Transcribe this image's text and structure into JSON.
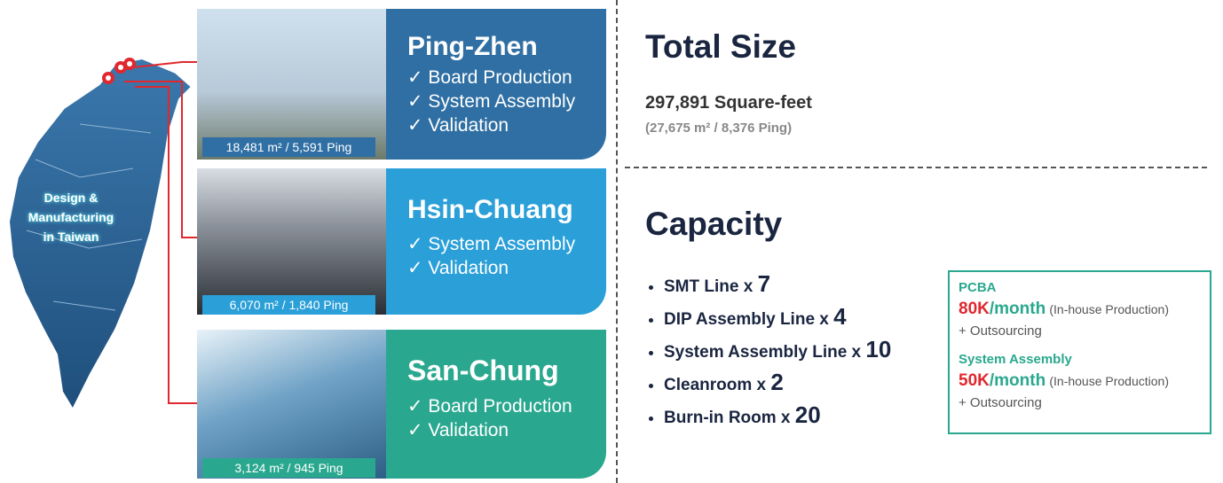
{
  "map": {
    "label_lines": [
      "Design &",
      "Manufacturing",
      "in Taiwan"
    ]
  },
  "sites": [
    {
      "name": "Ping-Zhen",
      "items": [
        "✓ Board Production",
        "✓ System Assembly",
        "✓ Validation"
      ],
      "area": "18,481 m² / 5,591 Ping"
    },
    {
      "name": "Hsin-Chuang",
      "items": [
        "✓ System Assembly",
        "✓ Validation"
      ],
      "area": "6,070 m² / 1,840 Ping"
    },
    {
      "name": "San-Chung",
      "items": [
        "✓ Board Production",
        "✓ Validation"
      ],
      "area": "3,124 m² / 945 Ping"
    }
  ],
  "total": {
    "title": "Total Size",
    "size": "297,891 Square-feet",
    "size_alt": "(27,675 m² / 8,376 Ping)"
  },
  "capacity": {
    "title": "Capacity",
    "lines": [
      {
        "label": "SMT Line x",
        "count": "7"
      },
      {
        "label": "DIP Assembly Line x",
        "count": "4"
      },
      {
        "label": "System Assembly Line x",
        "count": "10"
      },
      {
        "label": "Cleanroom x",
        "count": "2"
      },
      {
        "label": "Burn-in Room x",
        "count": "20"
      }
    ]
  },
  "output": [
    {
      "title": "PCBA",
      "amount": "80K",
      "unit": "/month",
      "note": "(In-house Production)",
      "extra": "+ Outsourcing"
    },
    {
      "title": "System Assembly",
      "amount": "50K",
      "unit": "/month",
      "note": "(In-house Production)",
      "extra": "+ Outsourcing"
    }
  ]
}
